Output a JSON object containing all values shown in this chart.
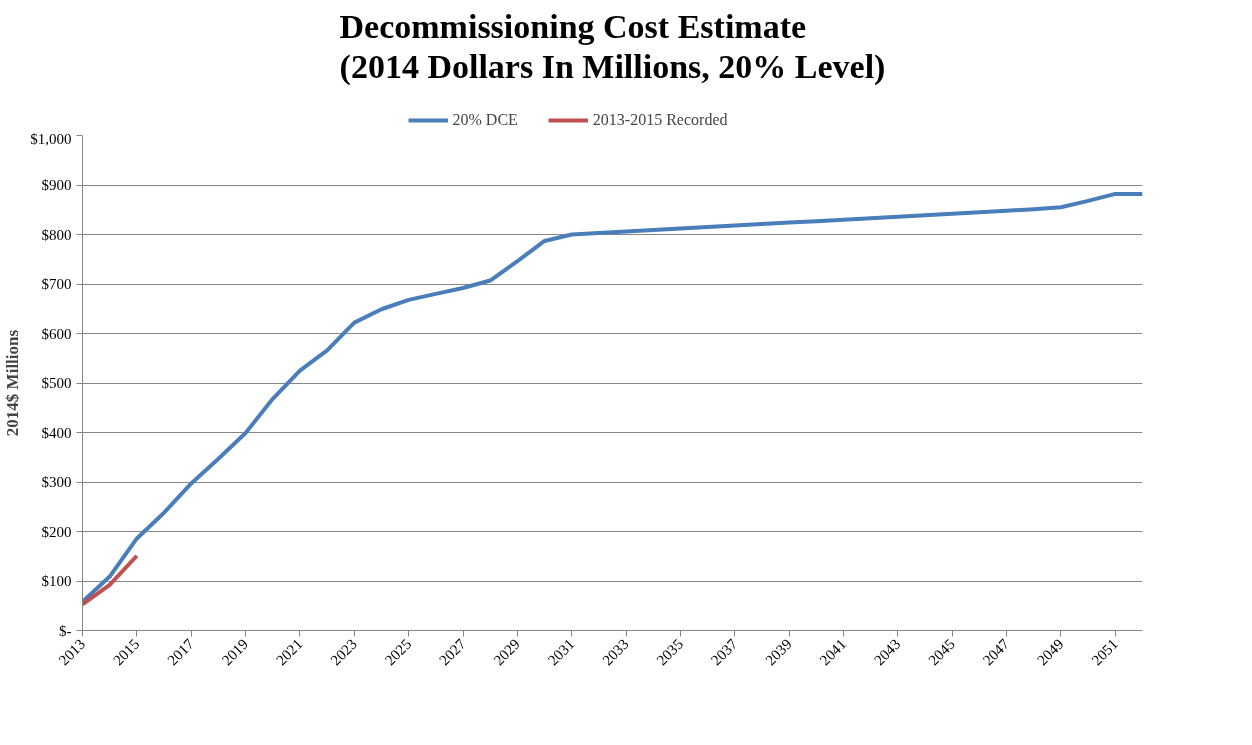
{
  "chart_data": {
    "type": "line",
    "title": "Decommissioning Cost Estimate\n(2014 Dollars In Millions, 20% Level)",
    "ylabel": "2014$ Millions",
    "x": [
      2013,
      2014,
      2015,
      2016,
      2017,
      2018,
      2019,
      2020,
      2021,
      2022,
      2023,
      2024,
      2025,
      2026,
      2027,
      2028,
      2029,
      2030,
      2031,
      2032,
      2033,
      2034,
      2035,
      2036,
      2037,
      2038,
      2039,
      2040,
      2041,
      2042,
      2043,
      2044,
      2045,
      2046,
      2047,
      2048,
      2049,
      2050,
      2051,
      2052
    ],
    "series": [
      {
        "name": "20% DCE",
        "color": "#4a7ebb",
        "values": [
          58,
          109,
          186,
          238,
          297,
          347,
          399,
          468,
          525,
          566,
          622,
          649,
          668,
          680,
          692,
          707,
          746,
          787,
          800,
          803,
          806,
          809,
          812,
          815,
          818,
          821,
          824,
          827,
          830,
          833,
          836,
          839,
          842,
          845,
          848,
          851,
          855,
          868,
          882,
          882
        ]
      },
      {
        "name": "2013-2015 Recorded",
        "color": "#c0504d",
        "x": [
          2013,
          2014,
          2015
        ],
        "values": [
          53,
          92,
          151
        ]
      }
    ],
    "xlim": [
      2013,
      2052
    ],
    "xticks": [
      2013,
      2015,
      2017,
      2019,
      2021,
      2023,
      2025,
      2027,
      2029,
      2031,
      2033,
      2035,
      2037,
      2039,
      2041,
      2043,
      2045,
      2047,
      2049,
      2051
    ],
    "ylim": [
      0,
      1000
    ],
    "yticks": [
      {
        "value": 0,
        "label": "$-"
      },
      {
        "value": 100,
        "label": "$100"
      },
      {
        "value": 200,
        "label": "$200"
      },
      {
        "value": 300,
        "label": "$300"
      },
      {
        "value": 400,
        "label": "$400"
      },
      {
        "value": 500,
        "label": "$500"
      },
      {
        "value": 600,
        "label": "$600"
      },
      {
        "value": 700,
        "label": "$700"
      },
      {
        "value": 800,
        "label": "$800"
      },
      {
        "value": 900,
        "label": "$900"
      },
      {
        "value": 1000,
        "label": "$1,000"
      }
    ],
    "grid": "y",
    "legend": "top",
    "line_style": "solid"
  }
}
